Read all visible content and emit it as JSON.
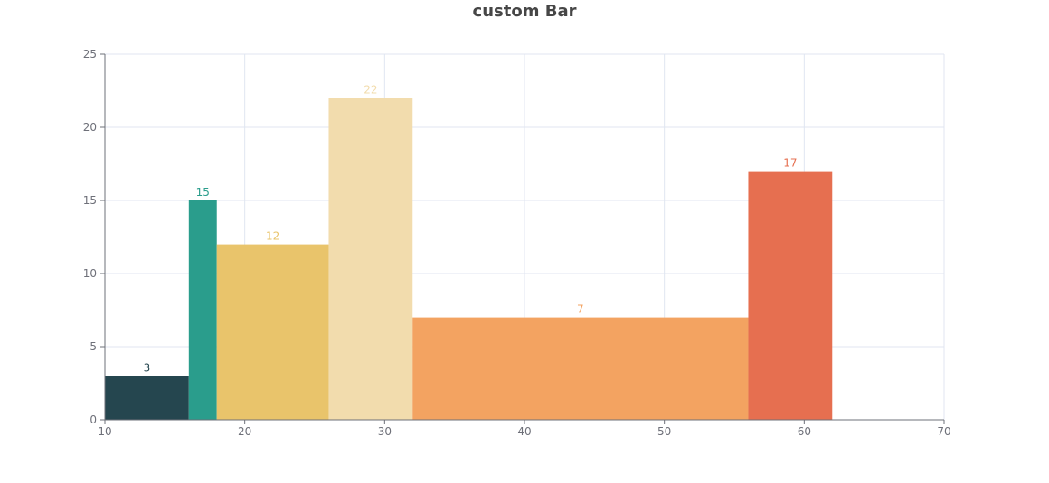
{
  "chart_data": {
    "type": "bar",
    "title": "custom Bar",
    "xlabel": "",
    "ylabel": "",
    "xlim": [
      10,
      70
    ],
    "ylim": [
      0,
      25
    ],
    "x_ticks": [
      "10",
      "20",
      "30",
      "40",
      "50",
      "60",
      "70"
    ],
    "y_ticks": [
      "0",
      "5",
      "10",
      "15",
      "20",
      "25"
    ],
    "grid": true,
    "bars": [
      {
        "x_start": 10,
        "x_end": 16,
        "value": 3,
        "color": "#25464f"
      },
      {
        "x_start": 16,
        "x_end": 18,
        "value": 15,
        "color": "#2a9d8c"
      },
      {
        "x_start": 18,
        "x_end": 26,
        "value": 12,
        "color": "#e9c46b"
      },
      {
        "x_start": 26,
        "x_end": 32,
        "value": 22,
        "color": "#f2dcad"
      },
      {
        "x_start": 32,
        "x_end": 56,
        "value": 7,
        "color": "#f3a361"
      },
      {
        "x_start": 56,
        "x_end": 62,
        "value": 17,
        "color": "#e66f50"
      }
    ]
  }
}
